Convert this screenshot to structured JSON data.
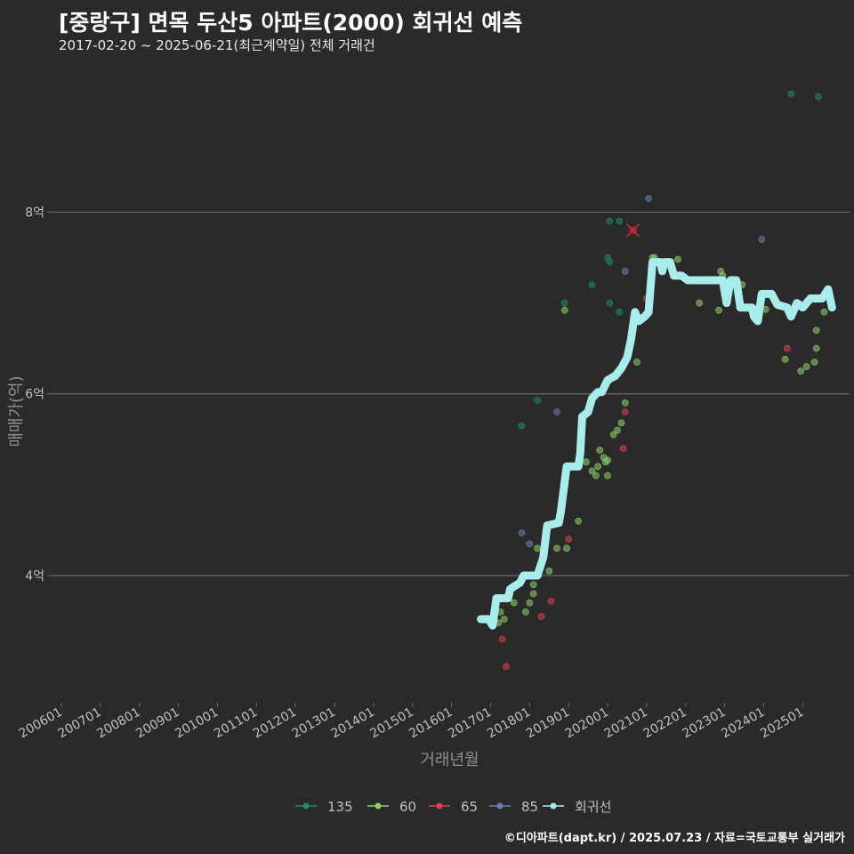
{
  "title": "[중랑구] 면목 두산5 아파트(2000) 회귀선 예측",
  "subtitle": "2017-02-20 ~ 2025-06-21(최근계약일) 전체 거래건",
  "caption": "©디아파트(dapt.kr) / 2025.07.23 / 자료=국토교통부 실거래가",
  "colors": {
    "background": "#2b2a2b",
    "grid": "#6a6a6a",
    "text": "#bfbfbf",
    "s135": "#1f8a70",
    "s60": "#8fd16a",
    "s65": "#d9434f",
    "s85": "#6b7fb5",
    "regression": "#a8ecec",
    "cancel_mark": "#d0243c"
  },
  "chart_data": {
    "type": "scatter",
    "xlabel": "거래년월",
    "ylabel": "매매가(억)",
    "xlim": [
      2005.75,
      2026.2
    ],
    "ylim": [
      2.6,
      9.6
    ],
    "yticks": [
      4,
      6,
      8
    ],
    "ytick_labels": [
      "4억",
      "6억",
      "8억"
    ],
    "xticks": [
      "200601",
      "200701",
      "200801",
      "200901",
      "201001",
      "201101",
      "201201",
      "201301",
      "201401",
      "201501",
      "201601",
      "201701",
      "201801",
      "201901",
      "202001",
      "202101",
      "202201",
      "202301",
      "202401",
      "202501"
    ],
    "legend": [
      "135",
      "60",
      "65",
      "85",
      "회귀선"
    ],
    "legend_position": "bottom",
    "series": [
      {
        "name": "135",
        "points": [
          [
            2017.8,
            5.65
          ],
          [
            2018.2,
            5.93
          ],
          [
            2018.9,
            7.0
          ],
          [
            2019.6,
            7.2
          ],
          [
            2020.0,
            7.5
          ],
          [
            2020.05,
            7.45
          ],
          [
            2020.05,
            7.9
          ],
          [
            2020.3,
            7.9
          ],
          [
            2020.3,
            6.9
          ],
          [
            2020.05,
            7.0
          ],
          [
            2024.7,
            9.3
          ],
          [
            2025.4,
            9.27
          ]
        ]
      },
      {
        "name": "60",
        "points": [
          [
            2017.1,
            3.5
          ],
          [
            2017.2,
            3.48
          ],
          [
            2017.25,
            3.6
          ],
          [
            2017.35,
            3.52
          ],
          [
            2017.6,
            3.7
          ],
          [
            2017.9,
            3.6
          ],
          [
            2018.0,
            3.7
          ],
          [
            2018.1,
            3.8
          ],
          [
            2018.1,
            3.9
          ],
          [
            2018.2,
            4.3
          ],
          [
            2018.5,
            4.05
          ],
          [
            2018.7,
            4.3
          ],
          [
            2018.95,
            4.3
          ],
          [
            2018.9,
            6.92
          ],
          [
            2019.25,
            4.6
          ],
          [
            2019.45,
            5.25
          ],
          [
            2019.6,
            5.15
          ],
          [
            2019.7,
            5.1
          ],
          [
            2019.75,
            5.2
          ],
          [
            2019.8,
            5.38
          ],
          [
            2019.9,
            5.3
          ],
          [
            2019.95,
            5.25
          ],
          [
            2020.0,
            5.27
          ],
          [
            2020.0,
            5.1
          ],
          [
            2020.15,
            5.55
          ],
          [
            2020.25,
            5.6
          ],
          [
            2020.35,
            5.68
          ],
          [
            2020.45,
            5.9
          ],
          [
            2021.15,
            7.5
          ],
          [
            2021.2,
            7.5
          ],
          [
            2021.55,
            7.45
          ],
          [
            2021.8,
            7.48
          ],
          [
            2022.35,
            7.0
          ],
          [
            2022.85,
            6.92
          ],
          [
            2024.05,
            6.93
          ],
          [
            2024.55,
            6.38
          ],
          [
            2024.95,
            6.25
          ],
          [
            2025.1,
            6.3
          ],
          [
            2025.3,
            6.35
          ],
          [
            2025.35,
            6.5
          ],
          [
            2025.35,
            6.7
          ],
          [
            2025.55,
            6.9
          ],
          [
            2022.9,
            7.35
          ],
          [
            2022.95,
            7.3
          ],
          [
            2023.45,
            7.2
          ],
          [
            2020.75,
            6.35
          ]
        ]
      },
      {
        "name": "65",
        "points": [
          [
            2017.3,
            3.3
          ],
          [
            2017.4,
            3.0
          ],
          [
            2018.3,
            3.55
          ],
          [
            2018.55,
            3.72
          ],
          [
            2019.0,
            4.4
          ],
          [
            2020.4,
            5.4
          ],
          [
            2020.45,
            5.8
          ],
          [
            2021.0,
            7.05
          ],
          [
            2024.6,
            6.5
          ]
        ]
      },
      {
        "name": "85",
        "points": [
          [
            2017.8,
            4.47
          ],
          [
            2018.0,
            4.35
          ],
          [
            2018.7,
            5.8
          ],
          [
            2020.45,
            7.35
          ],
          [
            2021.05,
            8.15
          ],
          [
            2023.95,
            7.7
          ]
        ]
      }
    ],
    "cancelled_points": [
      [
        2020.65,
        7.8
      ]
    ],
    "regression": [
      [
        2016.75,
        3.52
      ],
      [
        2016.95,
        3.52
      ],
      [
        2017.05,
        3.45
      ],
      [
        2017.15,
        3.75
      ],
      [
        2017.45,
        3.75
      ],
      [
        2017.5,
        3.85
      ],
      [
        2017.6,
        3.88
      ],
      [
        2017.75,
        3.92
      ],
      [
        2017.85,
        4.0
      ],
      [
        2018.2,
        4.0
      ],
      [
        2018.35,
        4.2
      ],
      [
        2018.45,
        4.55
      ],
      [
        2018.75,
        4.58
      ],
      [
        2018.8,
        4.7
      ],
      [
        2018.95,
        5.2
      ],
      [
        2019.25,
        5.2
      ],
      [
        2019.3,
        5.35
      ],
      [
        2019.35,
        5.75
      ],
      [
        2019.5,
        5.8
      ],
      [
        2019.6,
        5.95
      ],
      [
        2019.75,
        6.02
      ],
      [
        2019.85,
        6.02
      ],
      [
        2020.0,
        6.15
      ],
      [
        2020.2,
        6.2
      ],
      [
        2020.35,
        6.28
      ],
      [
        2020.5,
        6.4
      ],
      [
        2020.6,
        6.6
      ],
      [
        2020.7,
        6.9
      ],
      [
        2020.8,
        6.8
      ],
      [
        2020.95,
        6.85
      ],
      [
        2021.05,
        6.9
      ],
      [
        2021.15,
        7.45
      ],
      [
        2021.35,
        7.45
      ],
      [
        2021.4,
        7.35
      ],
      [
        2021.45,
        7.45
      ],
      [
        2021.6,
        7.45
      ],
      [
        2021.7,
        7.3
      ],
      [
        2021.9,
        7.3
      ],
      [
        2022.05,
        7.25
      ],
      [
        2022.4,
        7.25
      ],
      [
        2022.6,
        7.25
      ],
      [
        2022.8,
        7.25
      ],
      [
        2022.95,
        7.25
      ],
      [
        2023.05,
        7.0
      ],
      [
        2023.15,
        7.25
      ],
      [
        2023.3,
        7.25
      ],
      [
        2023.4,
        6.95
      ],
      [
        2023.7,
        6.95
      ],
      [
        2023.75,
        6.85
      ],
      [
        2023.85,
        6.8
      ],
      [
        2023.95,
        7.1
      ],
      [
        2024.2,
        7.1
      ],
      [
        2024.35,
        6.98
      ],
      [
        2024.6,
        6.95
      ],
      [
        2024.7,
        6.85
      ],
      [
        2024.85,
        7.0
      ],
      [
        2025.0,
        6.95
      ],
      [
        2025.2,
        7.05
      ],
      [
        2025.4,
        7.05
      ],
      [
        2025.5,
        7.05
      ],
      [
        2025.65,
        7.15
      ],
      [
        2025.75,
        6.95
      ]
    ]
  }
}
